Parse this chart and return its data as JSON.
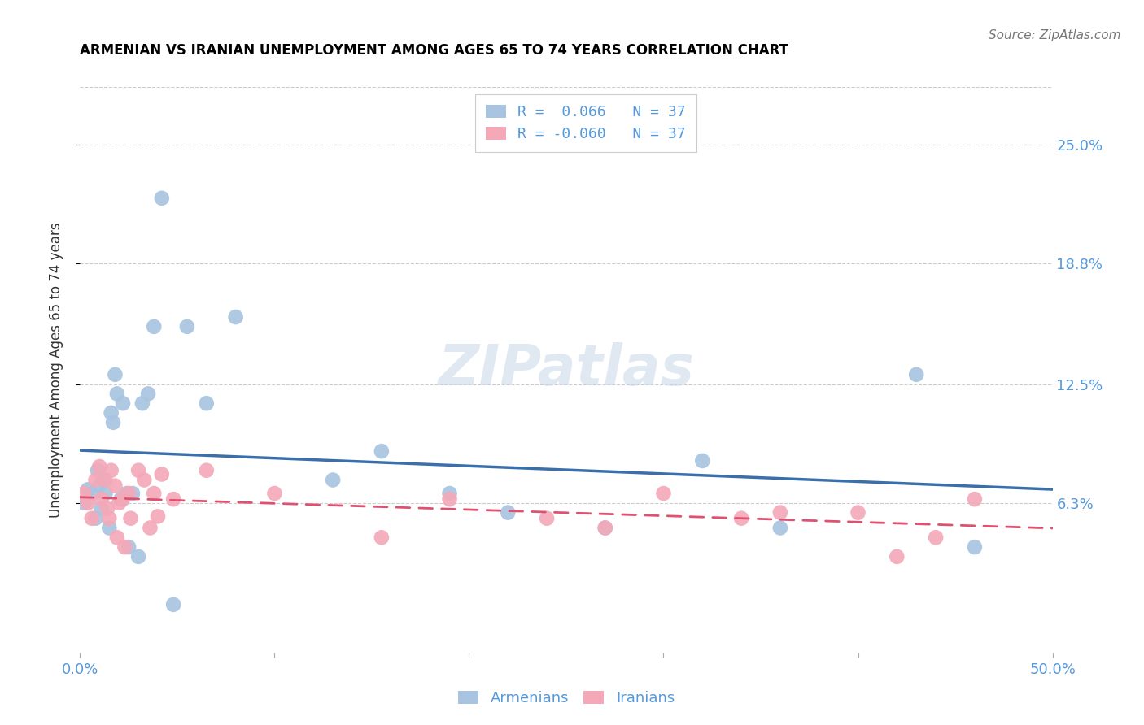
{
  "title": "ARMENIAN VS IRANIAN UNEMPLOYMENT AMONG AGES 65 TO 74 YEARS CORRELATION CHART",
  "source": "Source: ZipAtlas.com",
  "ylabel": "Unemployment Among Ages 65 to 74 years",
  "xlim": [
    0.0,
    0.5
  ],
  "ylim": [
    -0.015,
    0.28
  ],
  "xticks": [
    0.0,
    0.1,
    0.2,
    0.3,
    0.4,
    0.5
  ],
  "xticklabels": [
    "0.0%",
    "",
    "",
    "",
    "",
    "50.0%"
  ],
  "ytick_positions": [
    0.063,
    0.125,
    0.188,
    0.25
  ],
  "ytick_labels": [
    "6.3%",
    "12.5%",
    "18.8%",
    "25.0%"
  ],
  "armenian_R": 0.066,
  "iranian_R": -0.06,
  "N": 37,
  "armenian_color": "#a8c4e0",
  "armenian_line_color": "#3a6fac",
  "iranian_color": "#f4a8b8",
  "iranian_line_color": "#e05070",
  "watermark": "ZIPatlas",
  "armenian_x": [
    0.002,
    0.004,
    0.006,
    0.008,
    0.009,
    0.01,
    0.011,
    0.012,
    0.013,
    0.015,
    0.016,
    0.017,
    0.018,
    0.019,
    0.021,
    0.022,
    0.024,
    0.025,
    0.027,
    0.03,
    0.032,
    0.035,
    0.038,
    0.042,
    0.048,
    0.055,
    0.065,
    0.08,
    0.13,
    0.155,
    0.19,
    0.22,
    0.27,
    0.32,
    0.36,
    0.43,
    0.46
  ],
  "armenian_y": [
    0.063,
    0.07,
    0.068,
    0.055,
    0.08,
    0.072,
    0.06,
    0.075,
    0.068,
    0.05,
    0.11,
    0.105,
    0.13,
    0.12,
    0.065,
    0.115,
    0.068,
    0.04,
    0.068,
    0.035,
    0.115,
    0.12,
    0.155,
    0.222,
    0.01,
    0.155,
    0.115,
    0.16,
    0.075,
    0.09,
    0.068,
    0.058,
    0.05,
    0.085,
    0.05,
    0.13,
    0.04
  ],
  "iranian_x": [
    0.002,
    0.004,
    0.006,
    0.008,
    0.01,
    0.011,
    0.013,
    0.014,
    0.015,
    0.016,
    0.018,
    0.019,
    0.02,
    0.022,
    0.023,
    0.025,
    0.026,
    0.03,
    0.033,
    0.036,
    0.038,
    0.04,
    0.042,
    0.048,
    0.065,
    0.1,
    0.155,
    0.19,
    0.24,
    0.27,
    0.3,
    0.34,
    0.36,
    0.4,
    0.42,
    0.44,
    0.46
  ],
  "iranian_y": [
    0.068,
    0.063,
    0.055,
    0.075,
    0.082,
    0.065,
    0.075,
    0.06,
    0.055,
    0.08,
    0.072,
    0.045,
    0.063,
    0.065,
    0.04,
    0.068,
    0.055,
    0.08,
    0.075,
    0.05,
    0.068,
    0.056,
    0.078,
    0.065,
    0.08,
    0.068,
    0.045,
    0.065,
    0.055,
    0.05,
    0.068,
    0.055,
    0.058,
    0.058,
    0.035,
    0.045,
    0.065
  ]
}
